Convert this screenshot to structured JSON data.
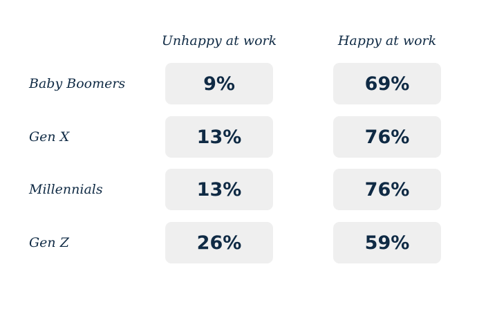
{
  "chart_data": {
    "type": "table",
    "columns": [
      "Unhappy at work",
      "Happy at work"
    ],
    "rows": [
      {
        "label": "Baby Boomers",
        "values": [
          "9%",
          "69%"
        ]
      },
      {
        "label": "Gen X",
        "values": [
          "13%",
          "76%"
        ]
      },
      {
        "label": "Millennials",
        "values": [
          "13%",
          "76%"
        ]
      },
      {
        "label": "Gen Z",
        "values": [
          "26%",
          "59%"
        ]
      }
    ],
    "numeric_values": [
      [
        9,
        69
      ],
      [
        13,
        76
      ],
      [
        13,
        76
      ],
      [
        26,
        59
      ]
    ],
    "unit": "%"
  },
  "colors": {
    "text": "#0f2a44",
    "cell_background": "#efefef",
    "page_background": "#ffffff"
  }
}
